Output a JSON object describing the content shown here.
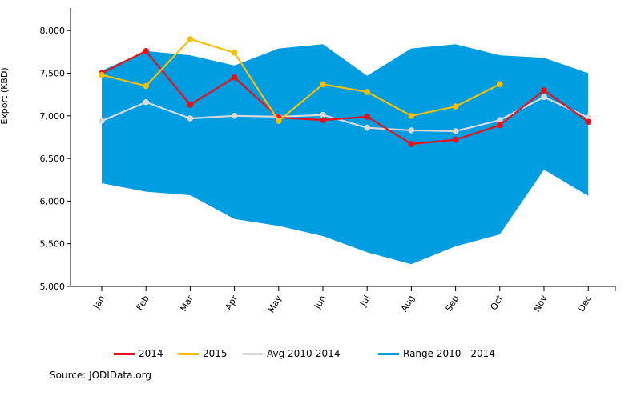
{
  "chart_data": {
    "type": "line",
    "ylabel": "Export (KBD)",
    "ylim": [
      5000,
      8250
    ],
    "yticks": [
      5000,
      5500,
      6000,
      6500,
      7000,
      7500,
      8000
    ],
    "ytick_labels": [
      "5,000",
      "5,500",
      "6,000",
      "6,500",
      "7,000",
      "7,500",
      "8,000"
    ],
    "categories": [
      "Jan",
      "Feb",
      "Mar",
      "Apr",
      "May",
      "Jun",
      "Jul",
      "Aug",
      "Sep",
      "Oct",
      "Nov",
      "Dec"
    ],
    "range_band": {
      "name": "Range 2010 - 2014",
      "color": "#009ee0",
      "low": [
        6210,
        6110,
        6070,
        5790,
        5710,
        5590,
        5400,
        5260,
        5470,
        5610,
        6370,
        6060
      ],
      "high": [
        7530,
        7760,
        7710,
        7590,
        7790,
        7840,
        7470,
        7790,
        7840,
        7710,
        7680,
        7500
      ]
    },
    "series": [
      {
        "name": "Avg 2010-2014",
        "color": "#d9d9d9",
        "values": [
          6940,
          7160,
          6970,
          7000,
          6990,
          7010,
          6860,
          6830,
          6820,
          6950,
          7220,
          6980
        ]
      },
      {
        "name": "2014",
        "color": "#e8111a",
        "values": [
          7500,
          7760,
          7130,
          7450,
          6980,
          6950,
          6990,
          6670,
          6720,
          6890,
          7300,
          6930
        ]
      },
      {
        "name": "2015",
        "color": "#f5bf0c",
        "values": [
          7480,
          7350,
          7900,
          7740,
          6940,
          7370,
          7280,
          7000,
          7110,
          7370,
          null,
          null
        ]
      }
    ],
    "legend": "bottom",
    "grid": false
  },
  "legend": {
    "items": [
      {
        "label": "2014",
        "color": "#e8111a"
      },
      {
        "label": "2015",
        "color": "#f5bf0c"
      },
      {
        "label": "Avg 2010-2014",
        "color": "#d9d9d9"
      },
      {
        "label": "Range 2010 - 2014",
        "color": "#009ee0"
      }
    ]
  },
  "source": "Source: JODIData.org"
}
